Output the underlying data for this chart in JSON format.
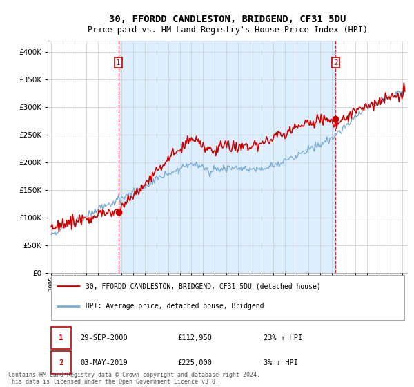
{
  "title": "30, FFORDD CANDLESTON, BRIDGEND, CF31 5DU",
  "subtitle": "Price paid vs. HM Land Registry's House Price Index (HPI)",
  "title_fontsize": 10,
  "subtitle_fontsize": 8.5,
  "background_color": "#ffffff",
  "grid_color": "#cccccc",
  "sale1_label": "1",
  "sale2_label": "2",
  "sale1_date": "29-SEP-2000",
  "sale1_price": "£112,950",
  "sale1_hpi": "23% ↑ HPI",
  "sale2_date": "03-MAY-2019",
  "sale2_price": "£225,000",
  "sale2_hpi": "3% ↓ HPI",
  "legend1": "30, FFORDD CANDLESTON, BRIDGEND, CF31 5DU (detached house)",
  "legend2": "HPI: Average price, detached house, Bridgend",
  "footer": "Contains HM Land Registry data © Crown copyright and database right 2024.\nThis data is licensed under the Open Government Licence v3.0.",
  "red_color": "#cc0000",
  "blue_color": "#7aadd4",
  "shade_color": "#ddeeff",
  "dashed_color": "#cc0000",
  "ylim": [
    0,
    420000
  ],
  "yticks": [
    0,
    50000,
    100000,
    150000,
    200000,
    250000,
    300000,
    350000,
    400000
  ],
  "sale1_x": 2000.75,
  "sale2_x": 2019.33,
  "xmin": 1994.7,
  "xmax": 2025.5
}
